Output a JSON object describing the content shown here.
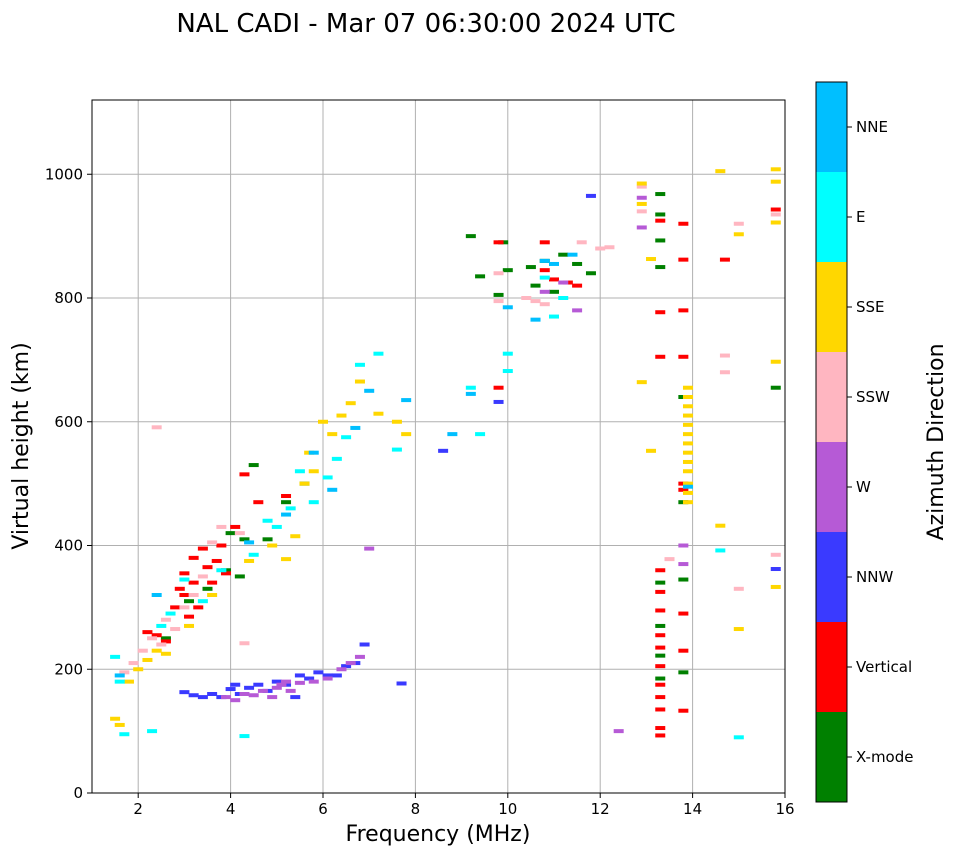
{
  "chart_data": {
    "type": "scatter",
    "title": "NAL CADI - Mar 07 06:30:00 2024 UTC",
    "xlabel": "Frequency (MHz)",
    "ylabel": "Virtual height (km)",
    "xlim": [
      1,
      16
    ],
    "ylim": [
      0,
      1120
    ],
    "xticks": [
      2,
      4,
      6,
      8,
      10,
      12,
      14,
      16
    ],
    "yticks": [
      0,
      200,
      400,
      600,
      800,
      1000
    ],
    "grid": true,
    "colorbar": {
      "label": "Azimuth Direction",
      "position": "right",
      "categories": [
        {
          "name": "X-mode",
          "color": "#008000"
        },
        {
          "name": "Vertical",
          "color": "#ff0000"
        },
        {
          "name": "NNW",
          "color": "#3a3aff"
        },
        {
          "name": "W",
          "color": "#b65ad6"
        },
        {
          "name": "SSW",
          "color": "#ffb6c1"
        },
        {
          "name": "SSE",
          "color": "#ffd700"
        },
        {
          "name": "E",
          "color": "#00ffff"
        },
        {
          "name": "NNE",
          "color": "#00bfff"
        }
      ]
    },
    "series": [
      {
        "name": "X-mode",
        "points": [
          [
            2.6,
            250
          ],
          [
            3.1,
            310
          ],
          [
            3.5,
            330
          ],
          [
            3.9,
            360
          ],
          [
            4.0,
            420
          ],
          [
            4.2,
            350
          ],
          [
            4.3,
            410
          ],
          [
            4.5,
            530
          ],
          [
            4.8,
            410
          ],
          [
            5.2,
            470
          ],
          [
            5.6,
            500
          ],
          [
            9.2,
            900
          ],
          [
            9.4,
            835
          ],
          [
            9.8,
            805
          ],
          [
            9.9,
            890
          ],
          [
            10.0,
            845
          ],
          [
            10.5,
            850
          ],
          [
            10.6,
            820
          ],
          [
            10.8,
            860
          ],
          [
            11.0,
            810
          ],
          [
            11.2,
            870
          ],
          [
            11.5,
            855
          ],
          [
            11.8,
            840
          ],
          [
            13.3,
            968
          ],
          [
            13.3,
            935
          ],
          [
            13.3,
            893
          ],
          [
            13.3,
            850
          ],
          [
            13.3,
            340
          ],
          [
            13.3,
            270
          ],
          [
            13.3,
            222
          ],
          [
            13.3,
            185
          ],
          [
            13.8,
            640
          ],
          [
            13.8,
            470
          ],
          [
            13.8,
            345
          ],
          [
            13.8,
            195
          ],
          [
            15.8,
            655
          ]
        ]
      },
      {
        "name": "Vertical",
        "points": [
          [
            2.2,
            260
          ],
          [
            2.4,
            255
          ],
          [
            2.6,
            245
          ],
          [
            2.8,
            300
          ],
          [
            2.9,
            330
          ],
          [
            3.0,
            355
          ],
          [
            3.0,
            320
          ],
          [
            3.1,
            285
          ],
          [
            3.2,
            380
          ],
          [
            3.2,
            340
          ],
          [
            3.3,
            300
          ],
          [
            3.4,
            395
          ],
          [
            3.5,
            365
          ],
          [
            3.6,
            340
          ],
          [
            3.7,
            375
          ],
          [
            3.8,
            400
          ],
          [
            3.9,
            355
          ],
          [
            4.1,
            430
          ],
          [
            4.3,
            515
          ],
          [
            4.6,
            470
          ],
          [
            5.2,
            480
          ],
          [
            9.8,
            890
          ],
          [
            9.8,
            655
          ],
          [
            10.8,
            845
          ],
          [
            10.8,
            890
          ],
          [
            11.0,
            830
          ],
          [
            11.3,
            825
          ],
          [
            11.5,
            820
          ],
          [
            13.3,
            925
          ],
          [
            13.3,
            777
          ],
          [
            13.3,
            705
          ],
          [
            13.3,
            360
          ],
          [
            13.3,
            325
          ],
          [
            13.3,
            295
          ],
          [
            13.3,
            255
          ],
          [
            13.3,
            235
          ],
          [
            13.3,
            205
          ],
          [
            13.3,
            175
          ],
          [
            13.3,
            155
          ],
          [
            13.3,
            135
          ],
          [
            13.3,
            105
          ],
          [
            13.3,
            93
          ],
          [
            13.8,
            920
          ],
          [
            13.8,
            862
          ],
          [
            13.8,
            780
          ],
          [
            13.8,
            705
          ],
          [
            13.8,
            500
          ],
          [
            13.8,
            490
          ],
          [
            13.8,
            290
          ],
          [
            13.8,
            230
          ],
          [
            13.8,
            133
          ],
          [
            14.7,
            862
          ],
          [
            15.8,
            943
          ]
        ]
      },
      {
        "name": "NNW",
        "points": [
          [
            3.0,
            163
          ],
          [
            3.2,
            158
          ],
          [
            3.4,
            155
          ],
          [
            3.6,
            160
          ],
          [
            3.8,
            155
          ],
          [
            4.0,
            168
          ],
          [
            4.1,
            175
          ],
          [
            4.2,
            160
          ],
          [
            4.4,
            170
          ],
          [
            4.6,
            175
          ],
          [
            4.8,
            165
          ],
          [
            5.0,
            180
          ],
          [
            5.2,
            175
          ],
          [
            5.4,
            155
          ],
          [
            5.5,
            190
          ],
          [
            5.7,
            185
          ],
          [
            5.9,
            195
          ],
          [
            6.1,
            190
          ],
          [
            6.3,
            190
          ],
          [
            6.5,
            205
          ],
          [
            6.7,
            210
          ],
          [
            6.9,
            240
          ],
          [
            7.7,
            177
          ],
          [
            8.6,
            553
          ],
          [
            9.8,
            632
          ],
          [
            11.8,
            965
          ],
          [
            15.8,
            362
          ]
        ]
      },
      {
        "name": "W",
        "points": [
          [
            3.9,
            155
          ],
          [
            4.1,
            150
          ],
          [
            4.3,
            160
          ],
          [
            4.5,
            158
          ],
          [
            4.7,
            165
          ],
          [
            4.9,
            155
          ],
          [
            5.0,
            170
          ],
          [
            5.1,
            175
          ],
          [
            5.2,
            180
          ],
          [
            5.3,
            165
          ],
          [
            5.5,
            178
          ],
          [
            5.8,
            180
          ],
          [
            6.1,
            185
          ],
          [
            6.4,
            200
          ],
          [
            6.6,
            210
          ],
          [
            6.8,
            220
          ],
          [
            7.0,
            395
          ],
          [
            10.8,
            810
          ],
          [
            11.2,
            825
          ],
          [
            11.5,
            780
          ],
          [
            12.4,
            100
          ],
          [
            12.9,
            962
          ],
          [
            12.9,
            914
          ],
          [
            13.8,
            400
          ],
          [
            13.8,
            370
          ]
        ]
      },
      {
        "name": "SSW",
        "points": [
          [
            1.7,
            195
          ],
          [
            1.9,
            210
          ],
          [
            2.1,
            230
          ],
          [
            2.3,
            250
          ],
          [
            2.4,
            591
          ],
          [
            2.5,
            240
          ],
          [
            2.6,
            280
          ],
          [
            2.8,
            265
          ],
          [
            3.0,
            300
          ],
          [
            3.2,
            320
          ],
          [
            3.4,
            350
          ],
          [
            3.6,
            405
          ],
          [
            3.8,
            430
          ],
          [
            4.2,
            420
          ],
          [
            4.3,
            242
          ],
          [
            9.8,
            795
          ],
          [
            9.8,
            840
          ],
          [
            10.4,
            800
          ],
          [
            10.6,
            795
          ],
          [
            10.8,
            790
          ],
          [
            11.6,
            890
          ],
          [
            12.0,
            880
          ],
          [
            12.2,
            882
          ],
          [
            12.9,
            940
          ],
          [
            12.9,
            980
          ],
          [
            13.5,
            378
          ],
          [
            14.7,
            707
          ],
          [
            14.7,
            680
          ],
          [
            15.0,
            920
          ],
          [
            15.0,
            330
          ],
          [
            15.8,
            935
          ],
          [
            15.8,
            385
          ]
        ]
      },
      {
        "name": "SSE",
        "points": [
          [
            1.5,
            120
          ],
          [
            1.6,
            110
          ],
          [
            1.8,
            180
          ],
          [
            2.0,
            200
          ],
          [
            2.2,
            215
          ],
          [
            2.4,
            230
          ],
          [
            2.6,
            225
          ],
          [
            3.1,
            270
          ],
          [
            3.6,
            320
          ],
          [
            4.4,
            375
          ],
          [
            4.9,
            400
          ],
          [
            5.2,
            378
          ],
          [
            5.4,
            415
          ],
          [
            5.6,
            500
          ],
          [
            5.7,
            550
          ],
          [
            5.8,
            520
          ],
          [
            6.0,
            600
          ],
          [
            6.2,
            580
          ],
          [
            6.4,
            610
          ],
          [
            6.6,
            630
          ],
          [
            6.8,
            665
          ],
          [
            7.2,
            613
          ],
          [
            7.6,
            600
          ],
          [
            7.8,
            580
          ],
          [
            12.9,
            985
          ],
          [
            12.9,
            952
          ],
          [
            12.9,
            664
          ],
          [
            13.1,
            863
          ],
          [
            13.1,
            553
          ],
          [
            13.9,
            655
          ],
          [
            13.9,
            640
          ],
          [
            13.9,
            625
          ],
          [
            13.9,
            610
          ],
          [
            13.9,
            595
          ],
          [
            13.9,
            580
          ],
          [
            13.9,
            565
          ],
          [
            13.9,
            550
          ],
          [
            13.9,
            535
          ],
          [
            13.9,
            520
          ],
          [
            13.9,
            500
          ],
          [
            13.9,
            485
          ],
          [
            13.9,
            470
          ],
          [
            14.6,
            1005
          ],
          [
            14.6,
            432
          ],
          [
            15.0,
            903
          ],
          [
            15.0,
            265
          ],
          [
            15.8,
            1008
          ],
          [
            15.8,
            988
          ],
          [
            15.8,
            922
          ],
          [
            15.8,
            697
          ],
          [
            15.8,
            333
          ]
        ]
      },
      {
        "name": "E",
        "points": [
          [
            1.5,
            220
          ],
          [
            1.6,
            180
          ],
          [
            1.7,
            95
          ],
          [
            2.3,
            100
          ],
          [
            2.5,
            270
          ],
          [
            2.7,
            290
          ],
          [
            3.0,
            345
          ],
          [
            3.4,
            310
          ],
          [
            3.8,
            360
          ],
          [
            4.3,
            92
          ],
          [
            4.5,
            385
          ],
          [
            4.8,
            440
          ],
          [
            5.0,
            430
          ],
          [
            5.3,
            460
          ],
          [
            5.5,
            520
          ],
          [
            5.8,
            470
          ],
          [
            6.1,
            510
          ],
          [
            6.3,
            540
          ],
          [
            6.5,
            575
          ],
          [
            6.8,
            692
          ],
          [
            7.2,
            710
          ],
          [
            7.6,
            555
          ],
          [
            9.2,
            655
          ],
          [
            9.4,
            580
          ],
          [
            10.0,
            710
          ],
          [
            10.0,
            682
          ],
          [
            10.8,
            833
          ],
          [
            11.0,
            770
          ],
          [
            11.2,
            800
          ],
          [
            14.6,
            392
          ],
          [
            15.0,
            90
          ]
        ]
      },
      {
        "name": "NNE",
        "points": [
          [
            1.6,
            190
          ],
          [
            2.4,
            320
          ],
          [
            4.4,
            405
          ],
          [
            5.2,
            450
          ],
          [
            5.8,
            550
          ],
          [
            6.2,
            490
          ],
          [
            6.7,
            590
          ],
          [
            7.0,
            650
          ],
          [
            7.8,
            635
          ],
          [
            8.8,
            580
          ],
          [
            9.2,
            645
          ],
          [
            10.0,
            785
          ],
          [
            10.6,
            765
          ],
          [
            10.8,
            860
          ],
          [
            11.0,
            855
          ],
          [
            11.4,
            870
          ],
          [
            13.9,
            495
          ]
        ]
      }
    ]
  }
}
